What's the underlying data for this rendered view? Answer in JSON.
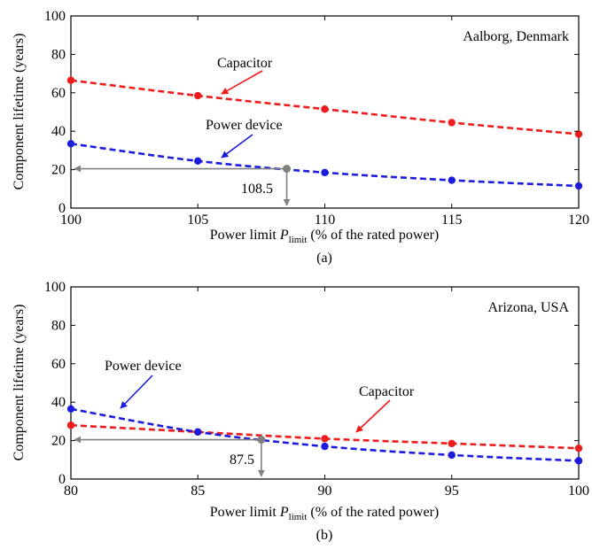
{
  "chart_data": [
    {
      "type": "line",
      "location": "Aalborg, Denmark",
      "caption": "(a)",
      "xlabel_pre": "Power limit ",
      "xlabel_sym": "P",
      "xlabel_sub": "limit",
      "xlabel_post": " (% of the rated power)",
      "ylabel": "Component lifetime (years)",
      "xlim": [
        100,
        120
      ],
      "ylim": [
        0,
        100
      ],
      "xticks": [
        100,
        105,
        110,
        115,
        120
      ],
      "yticks": [
        0,
        20,
        40,
        60,
        80,
        100
      ],
      "grid": false,
      "series": [
        {
          "name": "Capacitor",
          "color": "#ee1c1c",
          "x": [
            100,
            105,
            110,
            115,
            120
          ],
          "y": [
            66.5,
            58.5,
            51.5,
            44.5,
            38.5
          ]
        },
        {
          "name": "Power device",
          "color": "#1c1cdc",
          "x": [
            100,
            105,
            110,
            115,
            120
          ],
          "y": [
            33.5,
            24.5,
            18.5,
            14.5,
            11.5
          ]
        }
      ],
      "marker": {
        "x": 108.5,
        "y": 20.5,
        "label": "108.5",
        "color": "#808080"
      }
    },
    {
      "type": "line",
      "location": "Arizona, USA",
      "caption": "(b)",
      "xlabel_pre": "Power limit ",
      "xlabel_sym": "P",
      "xlabel_sub": "limit",
      "xlabel_post": " (% of the rated power)",
      "ylabel": "Component lifetime (years)",
      "xlim": [
        80,
        100
      ],
      "ylim": [
        0,
        100
      ],
      "xticks": [
        80,
        85,
        90,
        95,
        100
      ],
      "yticks": [
        0,
        20,
        40,
        60,
        80,
        100
      ],
      "grid": false,
      "series": [
        {
          "name": "Capacitor",
          "color": "#ee1c1c",
          "x": [
            80,
            85,
            90,
            95,
            100
          ],
          "y": [
            28,
            24.5,
            21,
            18.5,
            16
          ]
        },
        {
          "name": "Power device",
          "color": "#1c1cdc",
          "x": [
            80,
            85,
            90,
            95,
            100
          ],
          "y": [
            36.5,
            24.5,
            17,
            12.5,
            9.5
          ]
        }
      ],
      "marker": {
        "x": 87.5,
        "y": 20.5,
        "label": "87.5",
        "color": "#808080"
      }
    }
  ]
}
